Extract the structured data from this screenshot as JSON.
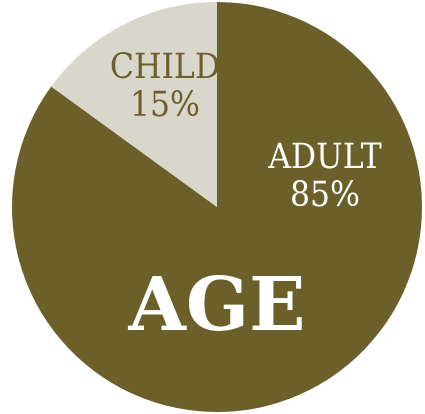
{
  "chart_data": {
    "type": "pie",
    "title": "AGE",
    "slices": [
      {
        "name": "ADULT",
        "value": 85,
        "value_label": "85%",
        "color": "#6b5f2a",
        "label_color": "#ffffff"
      },
      {
        "name": "CHILD",
        "value": 15,
        "value_label": "15%",
        "color": "#d9d6cc",
        "label_color": "#6b5f2a"
      }
    ],
    "start": "12 o'clock",
    "direction": "clockwise"
  }
}
